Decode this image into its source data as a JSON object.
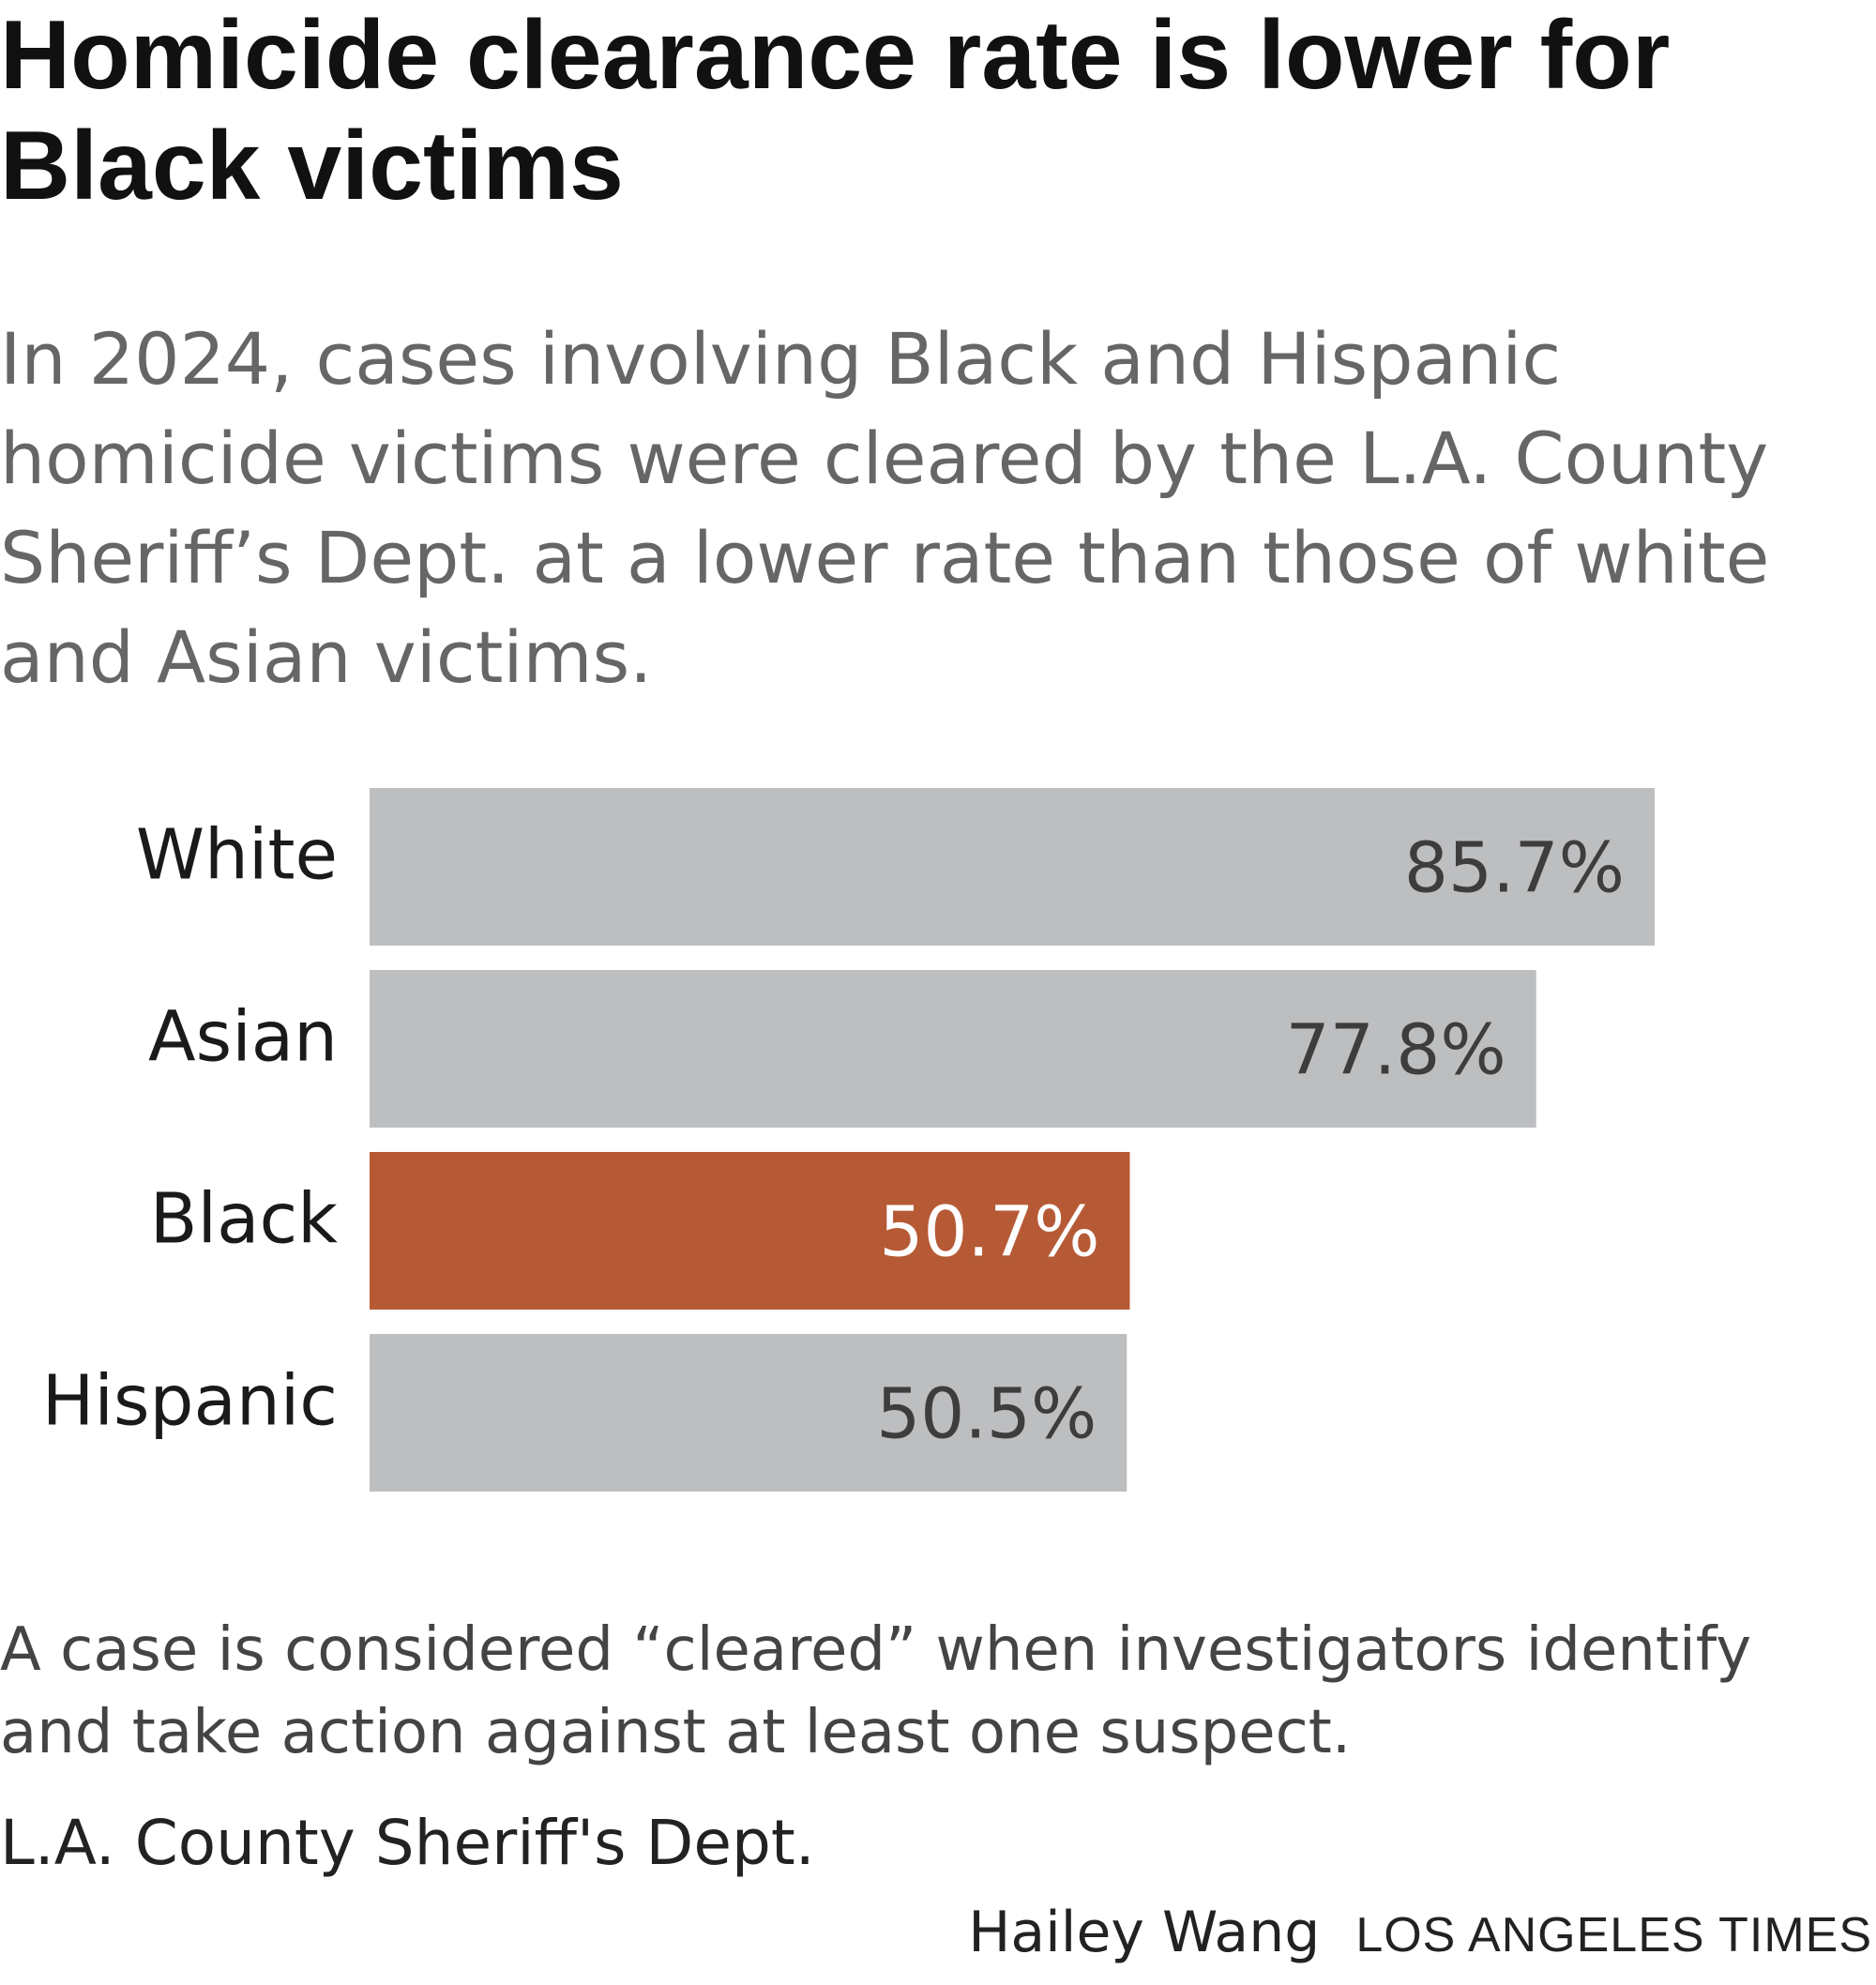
{
  "header": {
    "title": "Homicide clearance rate is lower for Black victims",
    "subtitle": "In 2024, cases involving Black and Hispanic homicide victims were cleared by the L.A. County Sheriff’s Dept. at a lower rate than those of white and Asian victims."
  },
  "chart_data": {
    "type": "bar",
    "orientation": "horizontal",
    "categories": [
      "White",
      "Asian",
      "Black",
      "Hispanic"
    ],
    "values": [
      85.7,
      77.8,
      50.7,
      50.5
    ],
    "value_labels": [
      "85.7%",
      "77.8%",
      "50.7%",
      "50.5%"
    ],
    "unit": "%",
    "title": "Homicide clearance rate is lower for Black victims",
    "xlabel": "",
    "ylabel": "",
    "xlim": [
      0,
      100
    ],
    "grid": false,
    "highlight_category": "Black",
    "colors": {
      "default_bar": "#bdbec0",
      "highlight_bar": "#b65a36",
      "default_value_text": "#3d3d3d",
      "highlight_value_text": "#ffffff"
    }
  },
  "footer": {
    "note": "A case is considered “cleared” when investigators identify and take action against at least one suspect.",
    "source": "L.A. County Sheriff's Dept.",
    "byline": "Hailey Wang",
    "publication": "LOS ANGELES TIMES"
  }
}
